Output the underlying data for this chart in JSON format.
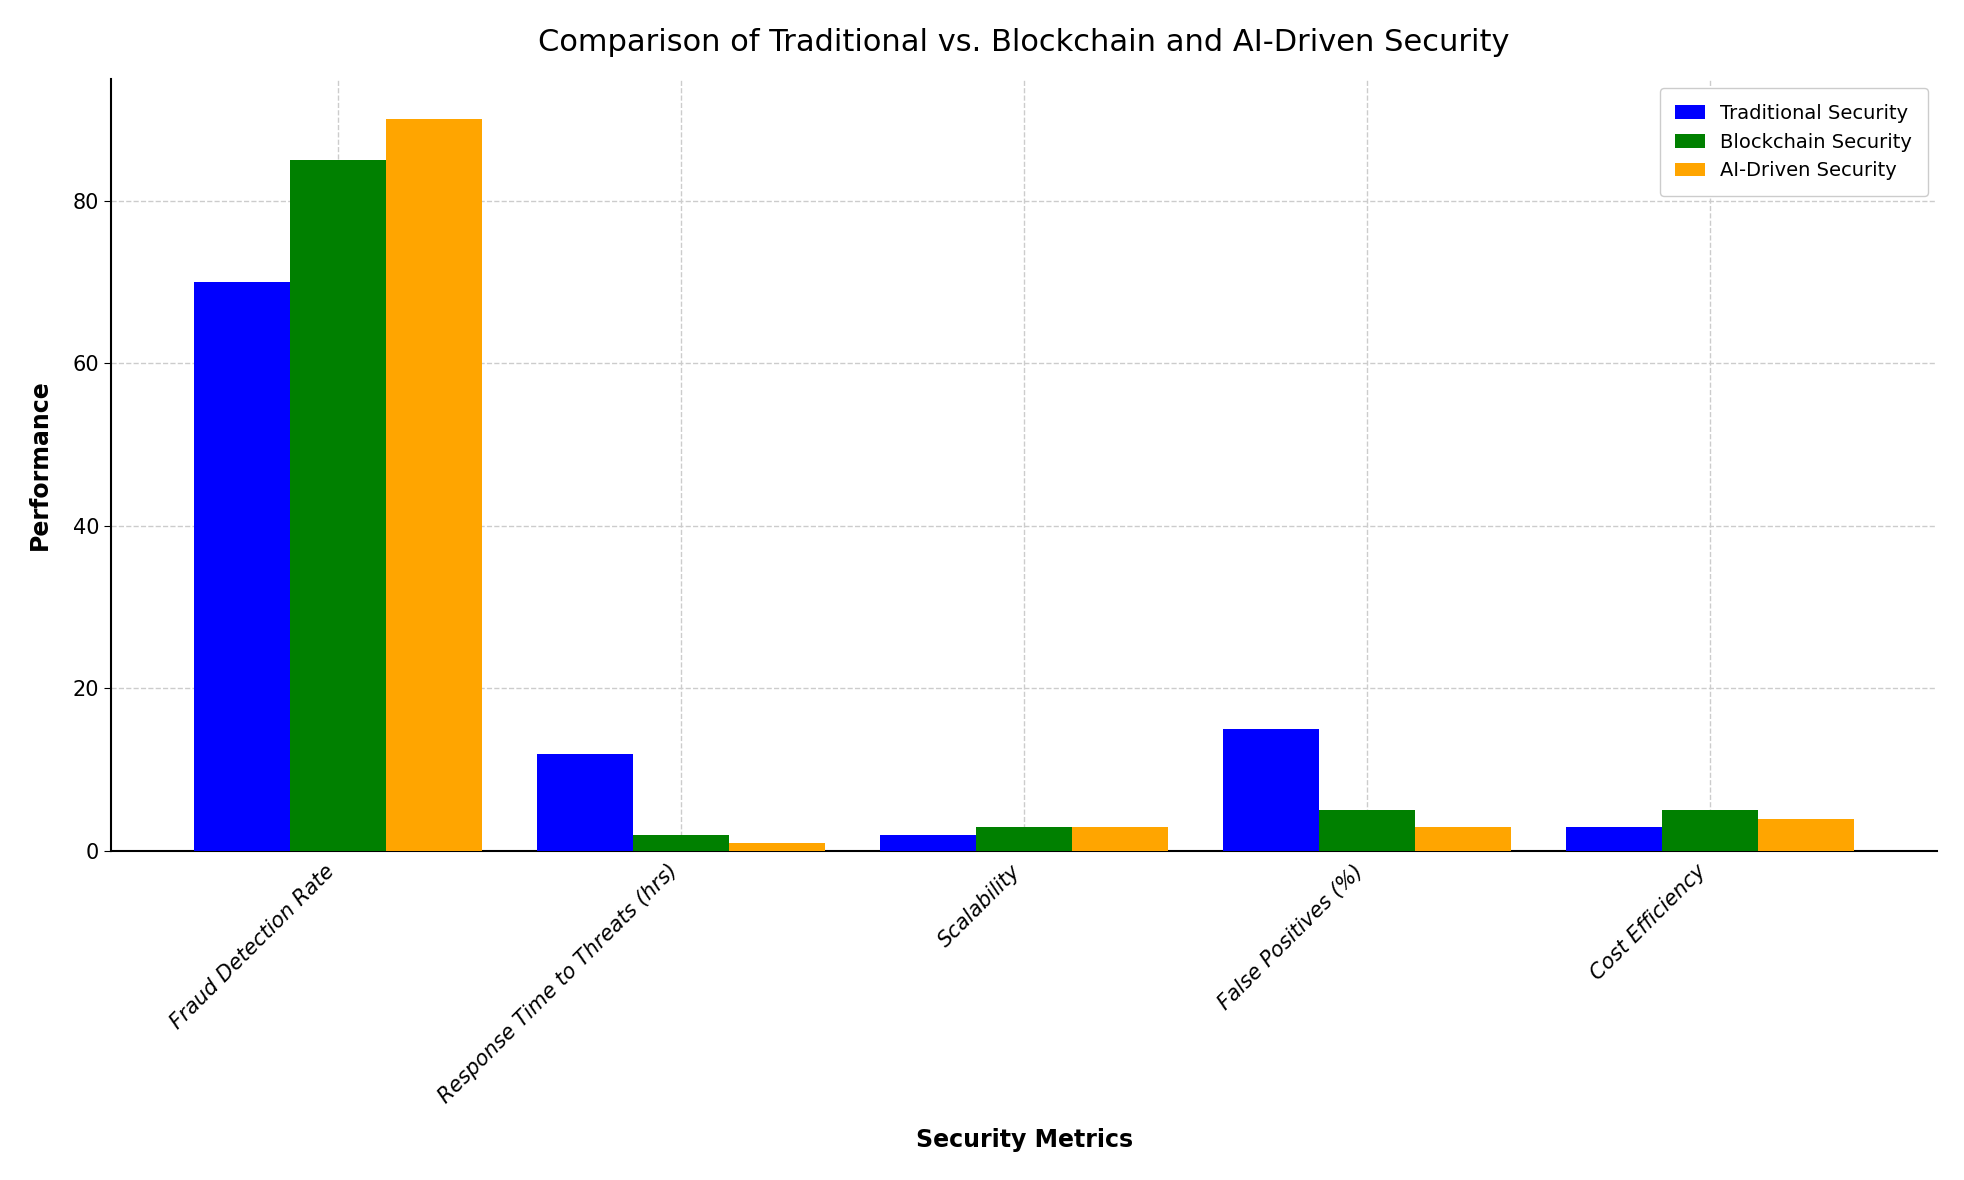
{
  "title": "Comparison of Traditional vs. Blockchain and AI-Driven Security",
  "xlabel": "Security Metrics",
  "ylabel": "Performance",
  "categories": [
    "Fraud Detection Rate",
    "Response Time to Threats (hrs)",
    "Scalability",
    "False Positives (%)",
    "Cost Efficiency"
  ],
  "series": [
    {
      "label": "Traditional Security",
      "color": "#0000ff",
      "values": [
        70,
        12,
        2,
        15,
        3
      ]
    },
    {
      "label": "Blockchain Security",
      "color": "#008000",
      "values": [
        85,
        2,
        3,
        5,
        5
      ]
    },
    {
      "label": "AI-Driven Security",
      "color": "#ffa500",
      "values": [
        90,
        1,
        3,
        3,
        4
      ]
    }
  ],
  "ylim": [
    0,
    95
  ],
  "yticks": [
    0,
    20,
    40,
    60,
    80
  ],
  "grid_color": "#cccccc",
  "grid_linestyle": "--",
  "background_color": "#ffffff",
  "title_fontsize": 22,
  "axis_label_fontsize": 17,
  "tick_label_fontsize": 15,
  "legend_fontsize": 14,
  "bar_width": 0.28,
  "legend_loc": "upper right"
}
